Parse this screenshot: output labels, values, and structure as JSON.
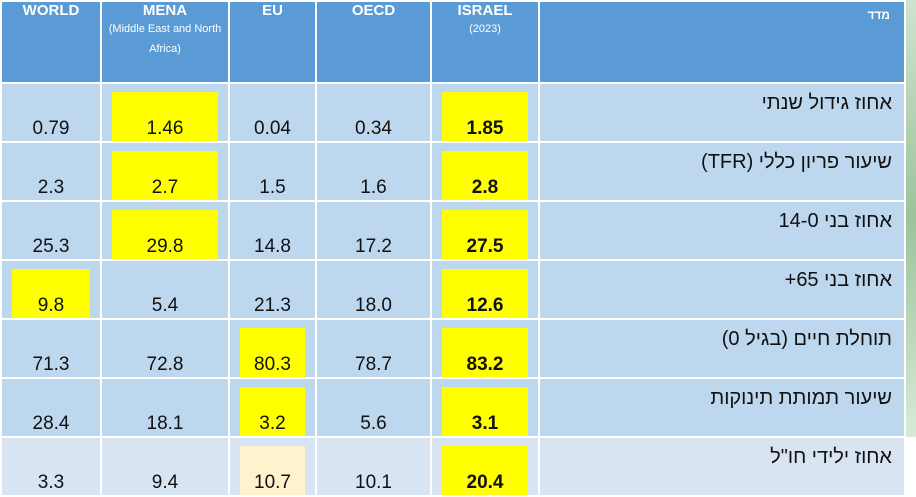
{
  "table": {
    "header": {
      "columns": [
        {
          "title": "WORLD"
        },
        {
          "title": "MENA",
          "subtitle": "(Middle East and North Africa)"
        },
        {
          "title": "EU"
        },
        {
          "title": "OECD"
        },
        {
          "title": "ISRAEL",
          "subtitle": "(2023)"
        }
      ],
      "measure": "מדד"
    },
    "rows": [
      {
        "measure": "אחוז גידול שנתי",
        "values": [
          "0.79",
          "1.46",
          "0.04",
          "0.34",
          "1.85"
        ]
      },
      {
        "measure": "שיעור פריון כללי (TFR)",
        "values": [
          "2.3",
          "2.7",
          "1.5",
          "1.6",
          "2.8"
        ]
      },
      {
        "measure": "אחוז בני 14-0",
        "values": [
          "25.3",
          "29.8",
          "14.8",
          "17.2",
          "27.5"
        ]
      },
      {
        "measure": "אחוז בני 65+",
        "values": [
          "9.8",
          "5.4",
          "21.3",
          "18.0",
          "12.6"
        ]
      },
      {
        "measure": "תוחלת חיים (בגיל 0)",
        "values": [
          "71.3",
          "72.8",
          "80.3",
          "78.7",
          "83.2"
        ]
      },
      {
        "measure": "שיעור תמותת תינוקות",
        "values": [
          "28.4",
          "18.1",
          "3.2",
          "5.6",
          "3.1"
        ]
      },
      {
        "measure": "אחוז ילידי חו\"ל",
        "values": [
          "3.3",
          "9.4",
          "10.7",
          "10.1",
          "20.4"
        ]
      }
    ]
  }
}
